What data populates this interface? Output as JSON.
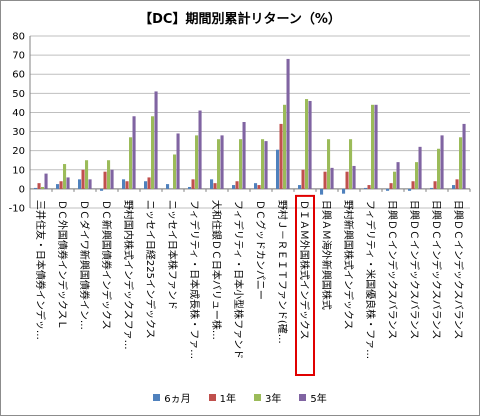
{
  "chart_data": {
    "type": "bar",
    "title": "【DC】期間別累計リターン（%）",
    "xlabel": "",
    "ylabel": "",
    "ylim": [
      -10,
      80
    ],
    "yticks": [
      -10,
      0,
      10,
      20,
      30,
      40,
      50,
      60,
      70,
      80
    ],
    "grid": true,
    "legend_position": "bottom",
    "highlighted_category": "ＤＩＡＭ外国株式インデックス",
    "categories": [
      "三井住友・日本債券インデッ…",
      "ＤＣ外国債券インデックスＬ",
      "ＤＣダイワ新興国債券イン…",
      "ＤＣ新興国債券インデックス",
      "野村国内株式インデックスファ…",
      "ニッセイ日経225インデックス",
      "ニッセイ日本株ファンド",
      "フィデリティ・日本成長株・ファ…",
      "大和住銀ＤＣ日本バリュー株…",
      "フィデリティ・日本小型株ファンド",
      "ＤＣグッドカンパニー",
      "野村Ｊ－ＲＥＩＴファンド(確…",
      "ＤＩＡＭ外国株式インデックス",
      "日興ＡＭ海外新興国株式",
      "野村新興国株式インデックス",
      "フィデリティ・米国優良株・ファ…",
      "日興ＤＣインデックスバランス",
      "日興ＤＣインデックスバランス",
      "日興ＤＣインデックスバランス",
      "日興ＤＣインデックスバランス"
    ],
    "series": [
      {
        "name": "6ヵ月",
        "color": "#4f81bd",
        "values": [
          0.5,
          2.5,
          5,
          -1,
          5,
          4,
          2.5,
          1,
          5,
          2,
          3,
          20.5,
          2,
          -3,
          -2.5,
          0.5,
          -1,
          -1,
          0.5,
          2
        ]
      },
      {
        "name": "1年",
        "color": "#c0504d",
        "values": [
          3,
          4,
          10,
          9,
          4,
          6,
          0,
          5,
          3,
          4,
          2,
          34,
          10,
          9,
          9,
          2,
          3,
          4,
          4,
          5
        ]
      },
      {
        "name": "3年",
        "color": "#9bbb59",
        "values": [
          1,
          13,
          15,
          15,
          27,
          38,
          18,
          28,
          26,
          26,
          26,
          44,
          47,
          26,
          26,
          44,
          9,
          14,
          21,
          27
        ]
      },
      {
        "name": "5年",
        "color": "#8064a2",
        "values": [
          8,
          6,
          5,
          10,
          38,
          51,
          29,
          41,
          28,
          35,
          25,
          68,
          46,
          11,
          12,
          44,
          14,
          22,
          28,
          34
        ]
      }
    ]
  }
}
